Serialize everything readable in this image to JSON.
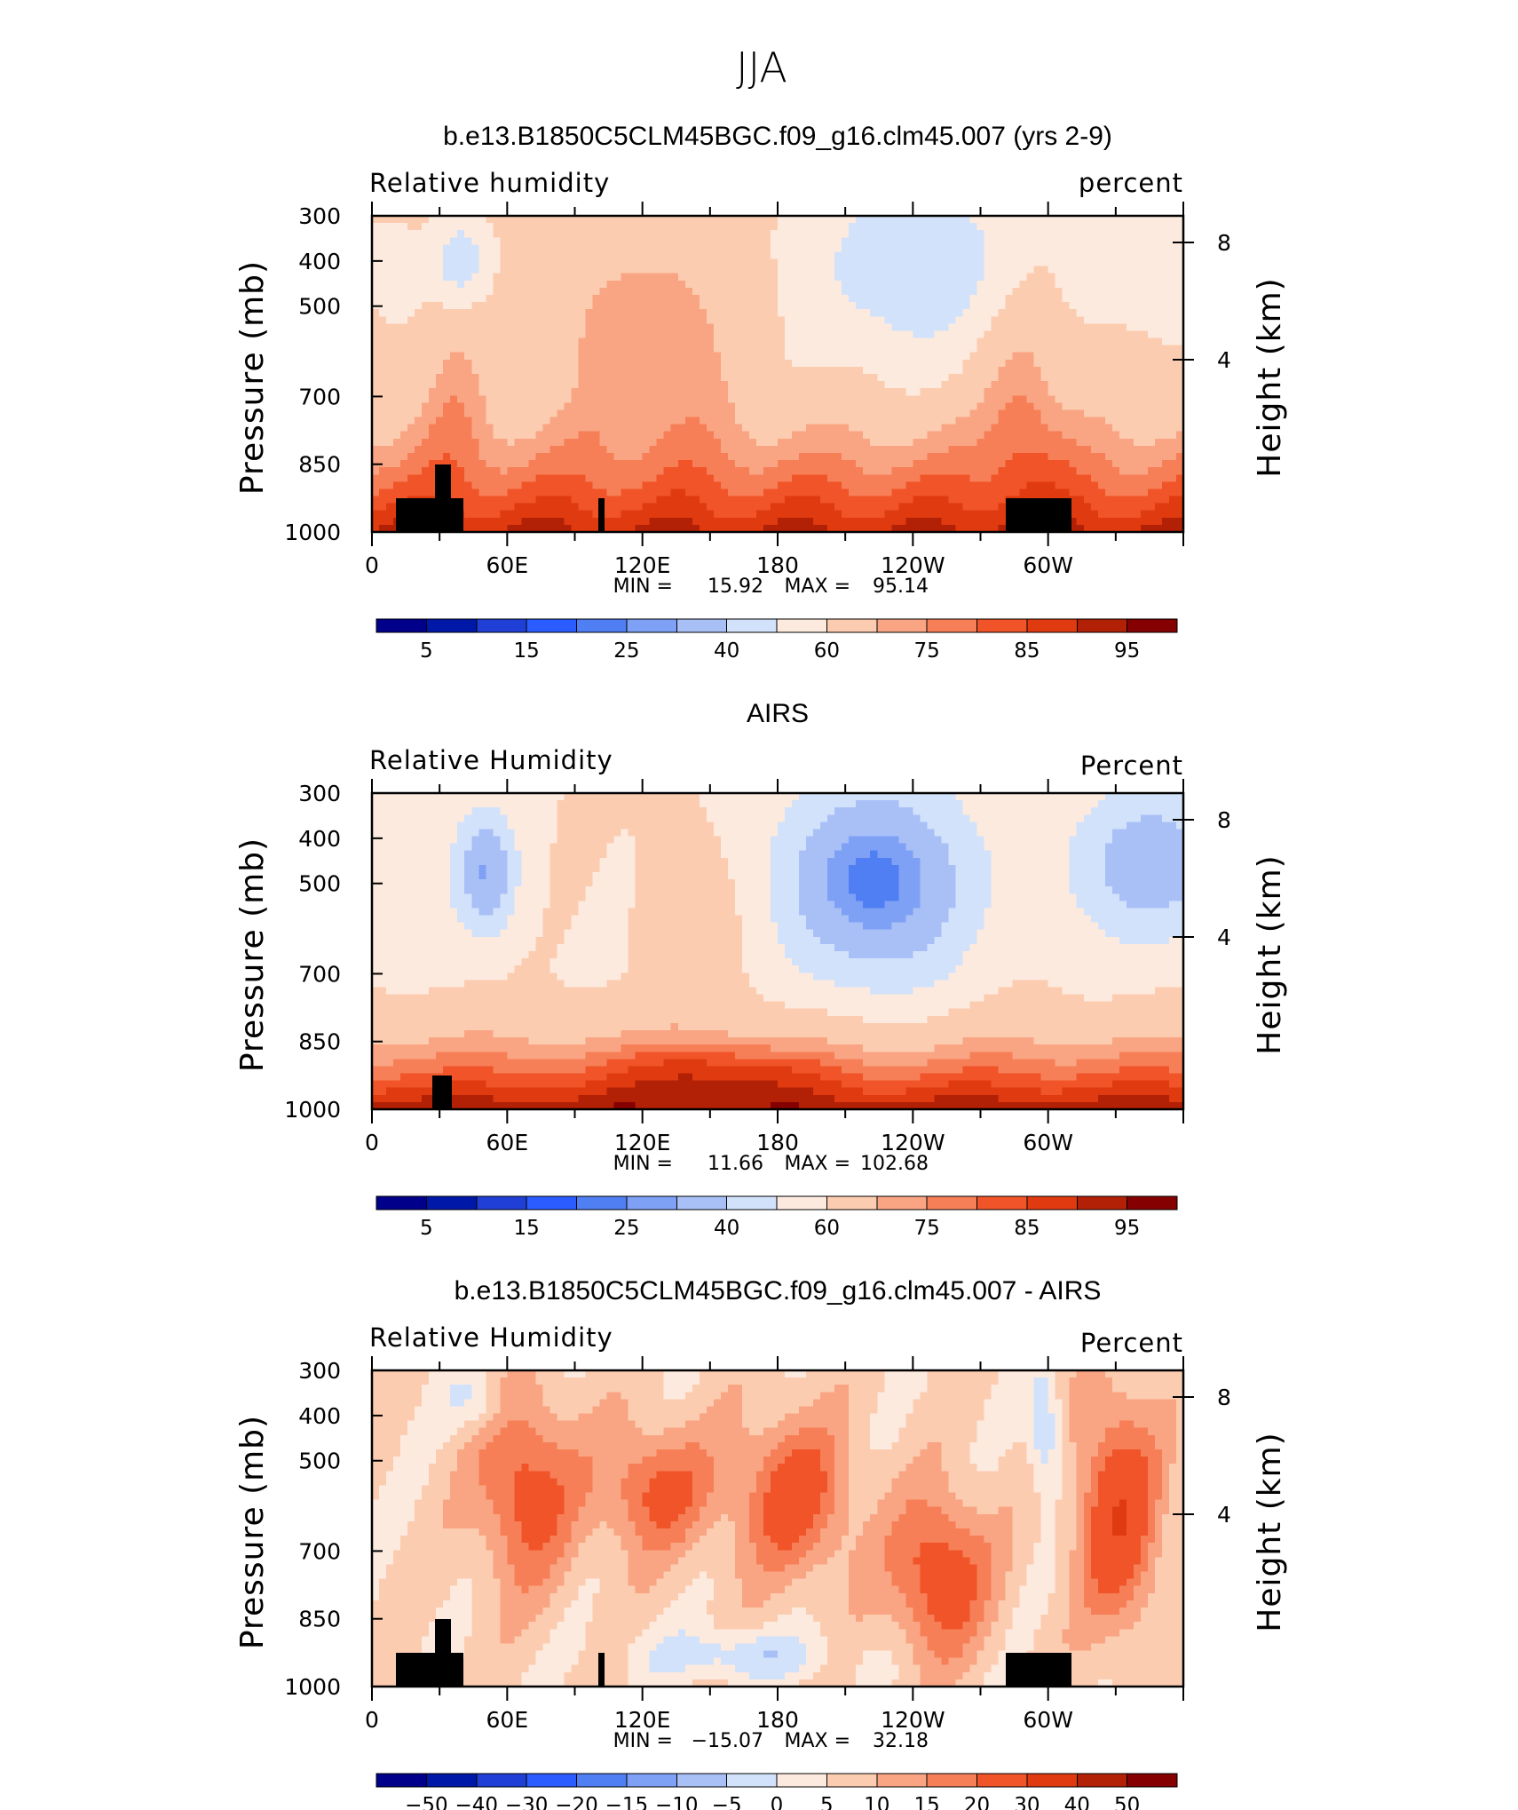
{
  "figure": {
    "main_title": "JJA"
  },
  "palette": {
    "colors": [
      "#00008b",
      "#0018a8",
      "#1f3fd6",
      "#2a5cff",
      "#4f7ff2",
      "#7ea1f5",
      "#a9c0f7",
      "#d2e2fb",
      "#fdeade",
      "#fcccb1",
      "#f9a583",
      "#f67f57",
      "#f05428",
      "#e03a10",
      "#b22006",
      "#850000"
    ],
    "land": "#000000"
  },
  "chart_data": [
    {
      "type": "heatmap",
      "title": "b.e13.B1850C5CLM45BGC.f09_g16.clm45.007 (yrs 2-9)",
      "left_label": "Relative humidity",
      "right_label": "percent",
      "ylabel": "Pressure (mb)",
      "y2label": "Height (km)",
      "yticks": [
        "300",
        "400",
        "500",
        "700",
        "850",
        "1000"
      ],
      "y2ticks": [
        "8",
        "4"
      ],
      "xticks": [
        "0",
        "60E",
        "120E",
        "180",
        "120W",
        "60W"
      ],
      "min_label": "MIN =",
      "min_value": "15.92",
      "max_label": "MAX =",
      "max_value": "95.14",
      "levels": [
        "5",
        "15",
        "25",
        "40",
        "60",
        "75",
        "85",
        "95"
      ]
    },
    {
      "type": "heatmap",
      "title": "AIRS",
      "left_label": "Relative Humidity",
      "right_label": "Percent",
      "ylabel": "Pressure (mb)",
      "y2label": "Height (km)",
      "yticks": [
        "300",
        "400",
        "500",
        "700",
        "850",
        "1000"
      ],
      "y2ticks": [
        "8",
        "4"
      ],
      "xticks": [
        "0",
        "60E",
        "120E",
        "180",
        "120W",
        "60W"
      ],
      "min_label": "MIN =",
      "min_value": "11.66",
      "max_label": "MAX =",
      "max_value": "102.68",
      "levels": [
        "5",
        "15",
        "25",
        "40",
        "60",
        "75",
        "85",
        "95"
      ]
    },
    {
      "type": "heatmap",
      "title": "b.e13.B1850C5CLM45BGC.f09_g16.clm45.007 - AIRS",
      "left_label": "Relative Humidity",
      "right_label": "Percent",
      "ylabel": "Pressure (mb)",
      "y2label": "Height (km)",
      "yticks": [
        "300",
        "400",
        "500",
        "700",
        "850",
        "1000"
      ],
      "y2ticks": [
        "8",
        "4"
      ],
      "xticks": [
        "0",
        "60E",
        "120E",
        "180",
        "120W",
        "60W"
      ],
      "min_label": "MIN =",
      "min_value": "−15.07",
      "max_label": "MAX =",
      "max_value": "32.18",
      "levels": [
        "−50",
        "−40",
        "−30",
        "−20",
        "−15",
        "−10",
        "−5",
        "0",
        "5",
        "10",
        "15",
        "20",
        "30",
        "40",
        "50"
      ]
    }
  ]
}
